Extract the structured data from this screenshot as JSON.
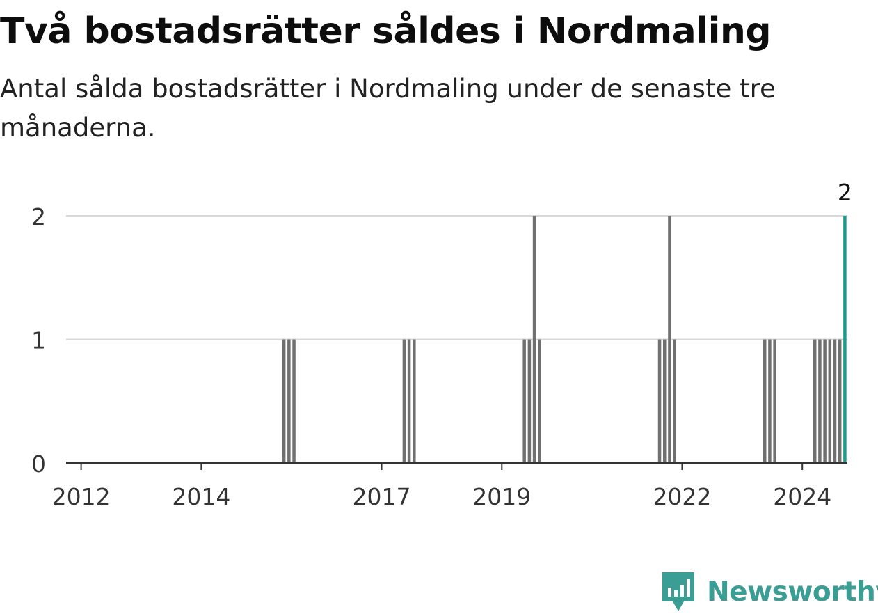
{
  "title": "Två bostadsrätter såldes i Nordmaling",
  "subtitle": "Antal sålda bostadsrätter i Nordmaling under de senaste tre månaderna.",
  "brand": {
    "name": "Newsworthy",
    "icon": "newsworthy-logo-icon"
  },
  "colors": {
    "bar": "#707070",
    "highlight": "#1a9c8c",
    "grid": "#d9d9d9",
    "axis": "#333333",
    "brand": "#3a9e95"
  },
  "chart_data": {
    "type": "bar",
    "title": "Två bostadsrätter såldes i Nordmaling",
    "subtitle": "Antal sålda bostadsrätter i Nordmaling under de senaste tre månaderna.",
    "xlabel": "",
    "ylabel": "",
    "xlim": [
      "2011-10",
      "2024-10"
    ],
    "ylim": [
      0,
      2
    ],
    "yticks": [
      0,
      1,
      2
    ],
    "grid": true,
    "x_tick_labels": [
      "2012",
      "2014",
      "2017",
      "2019",
      "2022",
      "2024"
    ],
    "highlight_label": "2",
    "series": [
      {
        "x": [
          "2015-05",
          "2015-06",
          "2015-07",
          "2017-05",
          "2017-06",
          "2017-07",
          "2019-05",
          "2019-06",
          "2019-07",
          "2019-08",
          "2021-08",
          "2021-09",
          "2021-10",
          "2021-11",
          "2023-05",
          "2023-06",
          "2023-07",
          "2024-03",
          "2024-04",
          "2024-05",
          "2024-06",
          "2024-07",
          "2024-08"
        ],
        "values": [
          1,
          1,
          1,
          1,
          1,
          1,
          1,
          1,
          2,
          1,
          1,
          1,
          2,
          1,
          1,
          1,
          1,
          1,
          1,
          1,
          1,
          1,
          1
        ]
      }
    ],
    "highlight": {
      "x": "2024-09",
      "value": 2
    }
  }
}
